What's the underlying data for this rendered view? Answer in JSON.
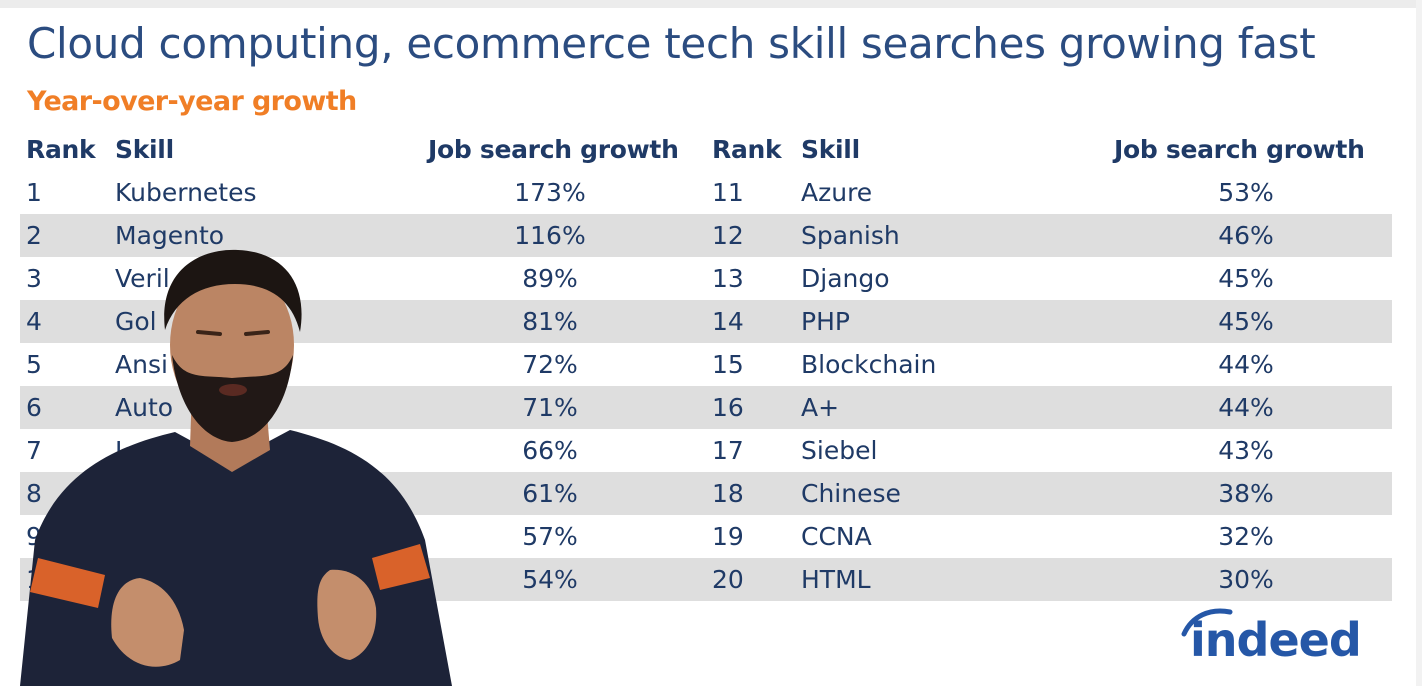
{
  "title": "Cloud computing, ecommerce tech skill searches growing fast",
  "subtitle": "Year-over-year growth",
  "headers": {
    "rank": "Rank",
    "skill": "Skill",
    "growth": "Job search growth"
  },
  "left_rows": [
    {
      "rank": "1",
      "skill": "Kubernetes",
      "growth": "173%"
    },
    {
      "rank": "2",
      "skill": "Magento",
      "growth": "116%"
    },
    {
      "rank": "3",
      "skill": "Veril",
      "growth": "89%"
    },
    {
      "rank": "4",
      "skill": "Gol",
      "growth": "81%"
    },
    {
      "rank": "5",
      "skill": "Ansi",
      "growth": "72%"
    },
    {
      "rank": "6",
      "skill": "Auto",
      "growth": "71%"
    },
    {
      "rank": "7",
      "skill": "La",
      "growth": "66%"
    },
    {
      "rank": "8",
      "skill": "",
      "growth": "61%"
    },
    {
      "rank": "9",
      "skill": "",
      "growth": "57%"
    },
    {
      "rank": "1",
      "skill": "",
      "growth": "54%"
    }
  ],
  "right_rows": [
    {
      "rank": "11",
      "skill": "Azure",
      "growth": "53%"
    },
    {
      "rank": "12",
      "skill": "Spanish",
      "growth": "46%"
    },
    {
      "rank": "13",
      "skill": "Django",
      "growth": "45%"
    },
    {
      "rank": "14",
      "skill": "PHP",
      "growth": "45%"
    },
    {
      "rank": "15",
      "skill": "Blockchain",
      "growth": "44%"
    },
    {
      "rank": "16",
      "skill": "A+",
      "growth": "44%"
    },
    {
      "rank": "17",
      "skill": "Siebel",
      "growth": "43%"
    },
    {
      "rank": "18",
      "skill": "Chinese",
      "growth": "38%"
    },
    {
      "rank": "19",
      "skill": "CCNA",
      "growth": "32%"
    },
    {
      "rank": "20",
      "skill": "HTML",
      "growth": "30%"
    }
  ],
  "logo": "indeed",
  "colors": {
    "title": "#2b4c80",
    "accent": "#f07e26",
    "stripe": "#dedede",
    "brand": "#2557a7"
  }
}
